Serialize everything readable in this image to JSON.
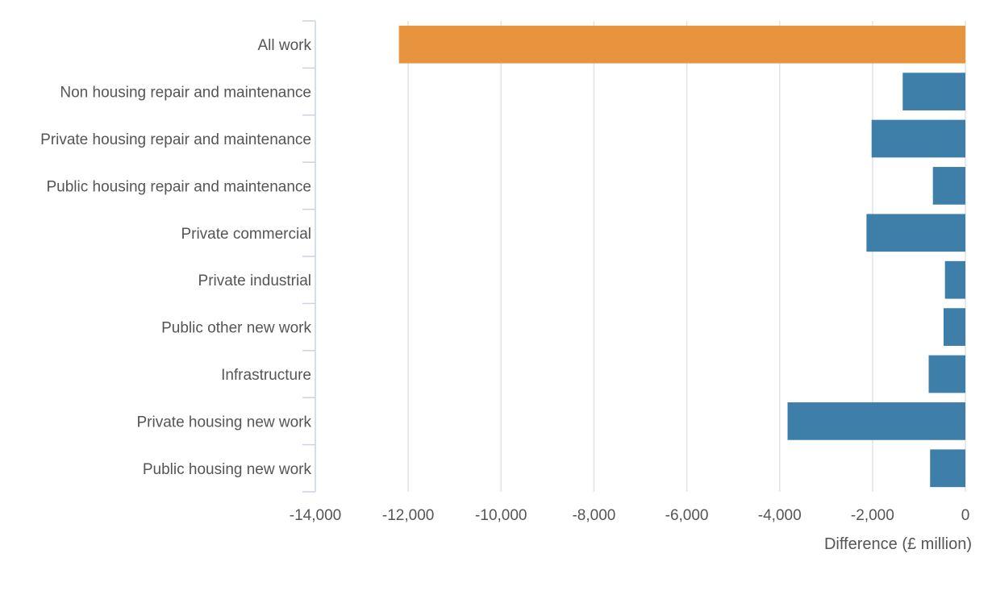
{
  "chart_data": {
    "type": "bar",
    "orientation": "horizontal",
    "categories": [
      "All work",
      "Non housing repair and maintenance",
      "Private housing repair and maintenance",
      "Public housing repair and maintenance",
      "Private commercial",
      "Private industrial",
      "Public other new work",
      "Infrastructure",
      "Private housing new work",
      "Public housing new work"
    ],
    "values": [
      -12200,
      -1350,
      -2020,
      -700,
      -2130,
      -440,
      -470,
      -790,
      -3830,
      -760
    ],
    "highlight_category": "All work",
    "colors": {
      "highlight": "#e8943f",
      "default": "#3e7fa9"
    },
    "xlabel": "Difference (£ million)",
    "ylabel": "",
    "xlim": [
      -14000,
      0
    ],
    "x_ticks": [
      -14000,
      -12000,
      -10000,
      -8000,
      -6000,
      -4000,
      -2000,
      0
    ],
    "x_tick_labels": [
      "-14,000",
      "-12,000",
      "-10,000",
      "-8,000",
      "-6,000",
      "-4,000",
      "-2,000",
      "0"
    ],
    "grid": true
  }
}
